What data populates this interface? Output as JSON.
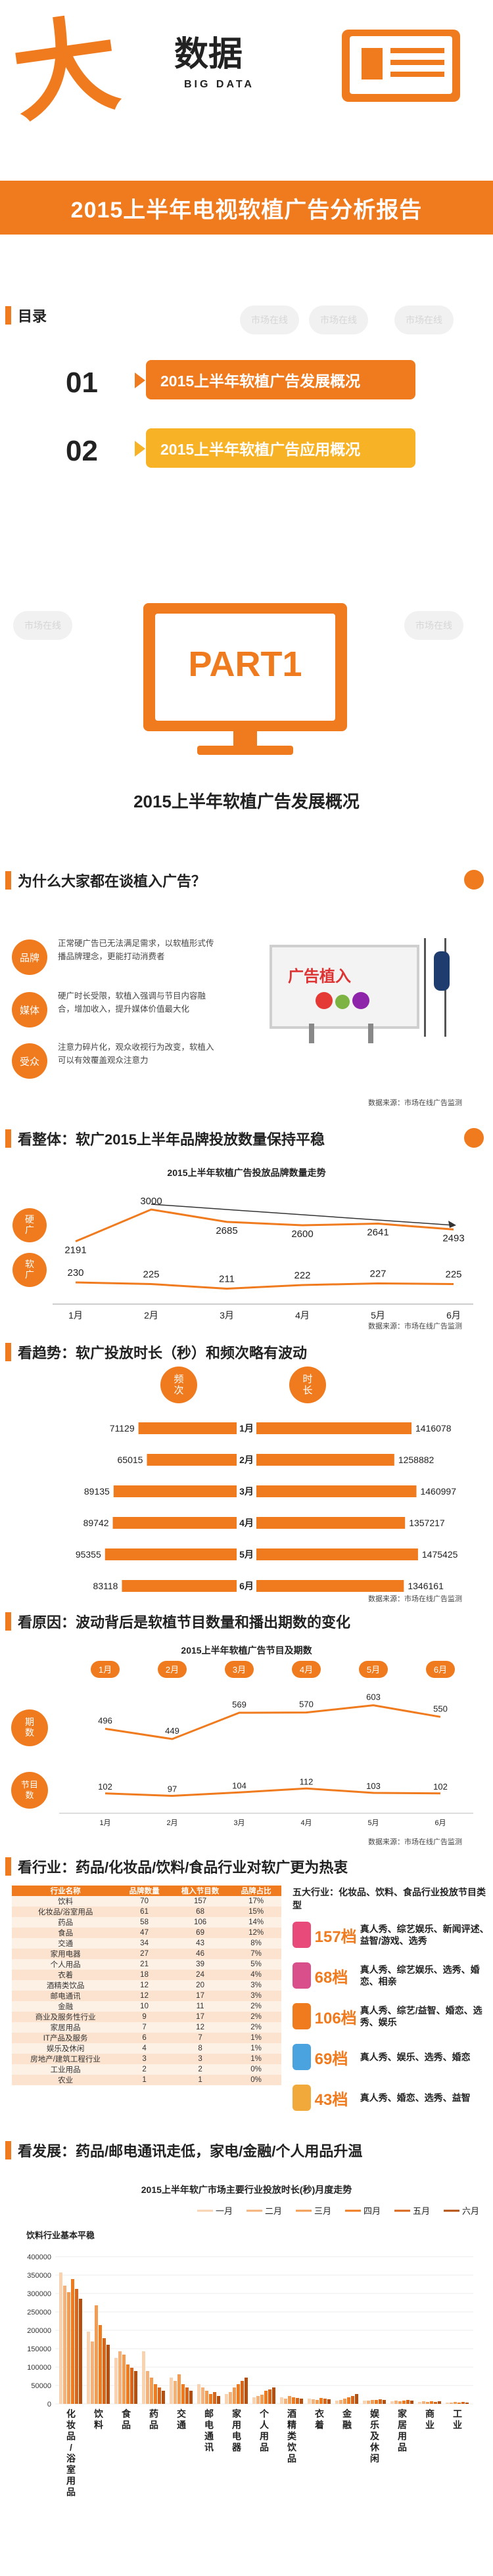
{
  "header": {
    "logo_big_char": "大",
    "logo_text": "数据",
    "logo_sub": "BIG DATA",
    "title": "2015上半年电视软植广告分析报告"
  },
  "toc": {
    "heading": "目录",
    "items": [
      {
        "num": "01",
        "label": "2015上半年软植广告发展概况"
      },
      {
        "num": "02",
        "label": "2015上半年软植广告应用概况"
      }
    ]
  },
  "watermark_text": "市场在线",
  "part": {
    "label": "PART1",
    "subtitle": "2015上半年软植广告发展概况"
  },
  "why": {
    "heading": "为什么大家都在谈植入广告？",
    "tags": [
      "品牌",
      "媒体",
      "受众"
    ],
    "texts": [
      "正常硬广告已无法满足需求，以软植形式传播品牌理念，更能打动消费者",
      "硬广时长受限，软植入强调与节目内容融合，增加收入，提升媒体价值最大化",
      "注意力碎片化，观众收视行为改变，软植入可以有效覆盖观众注意力"
    ],
    "billboard_text": "广告植入",
    "source": "数据来源：市场在线广告监测"
  },
  "overall": {
    "heading": "看整体：软广2015上半年品牌投放数量保持平稳",
    "chart_title": "2015上半年软植广告投放品牌数量走势",
    "row_labels": [
      "硬广",
      "软广"
    ],
    "months": [
      "1月",
      "2月",
      "3月",
      "4月",
      "5月",
      "6月"
    ],
    "hard_values": [
      2191,
      3000,
      2685,
      2600,
      2641,
      2493
    ],
    "soft_values": [
      230,
      225,
      211,
      222,
      227,
      225
    ],
    "source": "数据来源：市场在线广告监测"
  },
  "trend": {
    "heading": "看趋势：软广投放时长（秒）和频次略有波动",
    "left_header": "频次",
    "right_header": "时长",
    "months": [
      "1月",
      "2月",
      "3月",
      "4月",
      "5月",
      "6月"
    ],
    "frequency": [
      71129,
      65015,
      89135,
      89742,
      95355,
      83118
    ],
    "duration": [
      1416078,
      1258882,
      1460997,
      1357217,
      1475425,
      1346161
    ],
    "source": "数据来源：市场在线广告监测"
  },
  "reason": {
    "heading": "看原因：波动背后是软植节目数量和播出期数的变化",
    "chart_title": "2015上半年软植广告节目及期数",
    "months": [
      "1月",
      "2月",
      "3月",
      "4月",
      "5月",
      "6月"
    ],
    "row_labels": [
      "期数",
      "节目数"
    ],
    "episodes": [
      496,
      449,
      569,
      570,
      603,
      550
    ],
    "programs": [
      102,
      97,
      104,
      112,
      103,
      102
    ],
    "source": "数据来源：市场在线广告监测"
  },
  "industry": {
    "heading": "看行业：药品/化妆品/饮料/食品行业对软广更为热衷",
    "table_headers": [
      "行业名称",
      "品牌数量",
      "植入节目数",
      "品牌占比"
    ],
    "table_rows": [
      [
        "饮料",
        "70",
        "157",
        "17%"
      ],
      [
        "化妆品/浴室用品",
        "61",
        "68",
        "15%"
      ],
      [
        "药品",
        "58",
        "106",
        "14%"
      ],
      [
        "食品",
        "47",
        "69",
        "12%"
      ],
      [
        "交通",
        "34",
        "43",
        "8%"
      ],
      [
        "家用电器",
        "27",
        "46",
        "7%"
      ],
      [
        "个人用品",
        "21",
        "39",
        "5%"
      ],
      [
        "衣着",
        "18",
        "24",
        "4%"
      ],
      [
        "酒精类饮品",
        "12",
        "20",
        "3%"
      ],
      [
        "邮电通讯",
        "12",
        "17",
        "3%"
      ],
      [
        "金融",
        "10",
        "11",
        "2%"
      ],
      [
        "商业及服务性行业",
        "9",
        "17",
        "2%"
      ],
      [
        "家居用品",
        "7",
        "12",
        "2%"
      ],
      [
        "IT产品及服务",
        "6",
        "7",
        "1%"
      ],
      [
        "娱乐及休闲",
        "4",
        "8",
        "1%"
      ],
      [
        "房地产/建筑工程行业",
        "3",
        "3",
        "1%"
      ],
      [
        "工业用品",
        "2",
        "2",
        "0%"
      ],
      [
        "农业",
        "1",
        "1",
        "0%"
      ]
    ],
    "right_title": "五大行业：化妆品、饮料、食品行业投放节目类型",
    "right_rows": [
      {
        "value": "157档",
        "desc": "真人秀、综艺娱乐、新闻评述、益智/游戏、选秀"
      },
      {
        "value": "68档",
        "desc": "真人秀、综艺娱乐、选秀、婚恋、相亲"
      },
      {
        "value": "106档",
        "desc": "真人秀、综艺/益智、婚恋、选秀、娱乐"
      },
      {
        "value": "69档",
        "desc": "真人秀、娱乐、选秀、婚恋"
      },
      {
        "value": "43档",
        "desc": "真人秀、婚恋、选秀、益智"
      }
    ]
  },
  "dev": {
    "heading": "看发展：药品/邮电通讯走低，家电/金融/个人用品升温",
    "chart_title": "2015上半年软广市场主要行业投放时长(秒)月度走势",
    "legend": [
      "一月",
      "二月",
      "三月",
      "四月",
      "五月",
      "六月"
    ],
    "categories": [
      "化妆品/浴室用品",
      "饮料",
      "食品",
      "药品",
      "交通",
      "邮电通讯",
      "家用电器",
      "个人用品",
      "酒精类饮品",
      "衣着",
      "金融",
      "娱乐及休闲",
      "家居用品",
      "商业",
      "工业"
    ],
    "small_title": "饮料行业基本平稳",
    "yticks": [
      "400000",
      "350000",
      "300000",
      "250000",
      "200000",
      "150000",
      "100000",
      "50000",
      "0"
    ]
  }
}
